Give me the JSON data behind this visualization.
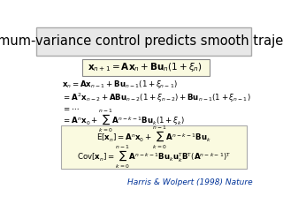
{
  "title": "Minimum-variance control predicts smooth trajectory.",
  "title_fontsize": 10.5,
  "bg_color": "#ffffff",
  "title_box_color": "#e8e8e8",
  "highlight_box_color": "#fafae0",
  "reference": "Harris & Wolpert (1998) Nature",
  "ref_color": "#003399",
  "eq_top": "$\\mathbf{x}_{n+1} = \\mathbf{Ax}_n + \\mathbf{Bu}_n\\left(1 + \\xi_n\\right)$",
  "eq1": "$\\mathbf{x}_n = \\mathbf{Ax}_{n-1} + \\mathbf{Bu}_{n-1}\\left(1 + \\xi_{n-1}\\right)$",
  "eq2": "$= \\mathbf{A}^2\\mathbf{x}_{n-2} + \\mathbf{ABu}_{n-2}\\left(1 + \\xi_{n-2}\\right) + \\mathbf{Bu}_{n-1}\\left(1 + \\xi_{n-1}\\right)$",
  "eq3": "$= \\cdots$",
  "eq4": "$= \\mathbf{A}^n\\mathbf{x}_0 + \\sum_{k=0}^{n-1}\\mathbf{A}^{n-k-1}\\mathbf{Bu}_k\\left(1 + \\xi_k\\right)$",
  "eq5": "$\\mathrm{E}\\left[\\mathbf{x}_n\\right] = \\mathbf{A}^n\\mathbf{x}_0 + \\sum_{k=0}^{n-1}\\mathbf{A}^{n-k-1}\\mathbf{Bu}_k$",
  "eq6": "$\\mathrm{Cov}\\left[\\mathbf{x}_n\\right] = \\sum_{k=0}^{n-1}\\mathbf{A}^{n-k-1}\\mathbf{Bu}_k\\mathbf{u}_k^{\\mathrm{T}}\\mathbf{B}^{\\mathrm{T}}\\left(\\mathbf{A}^{n-k-1}\\right)^{\\mathrm{T}}$"
}
